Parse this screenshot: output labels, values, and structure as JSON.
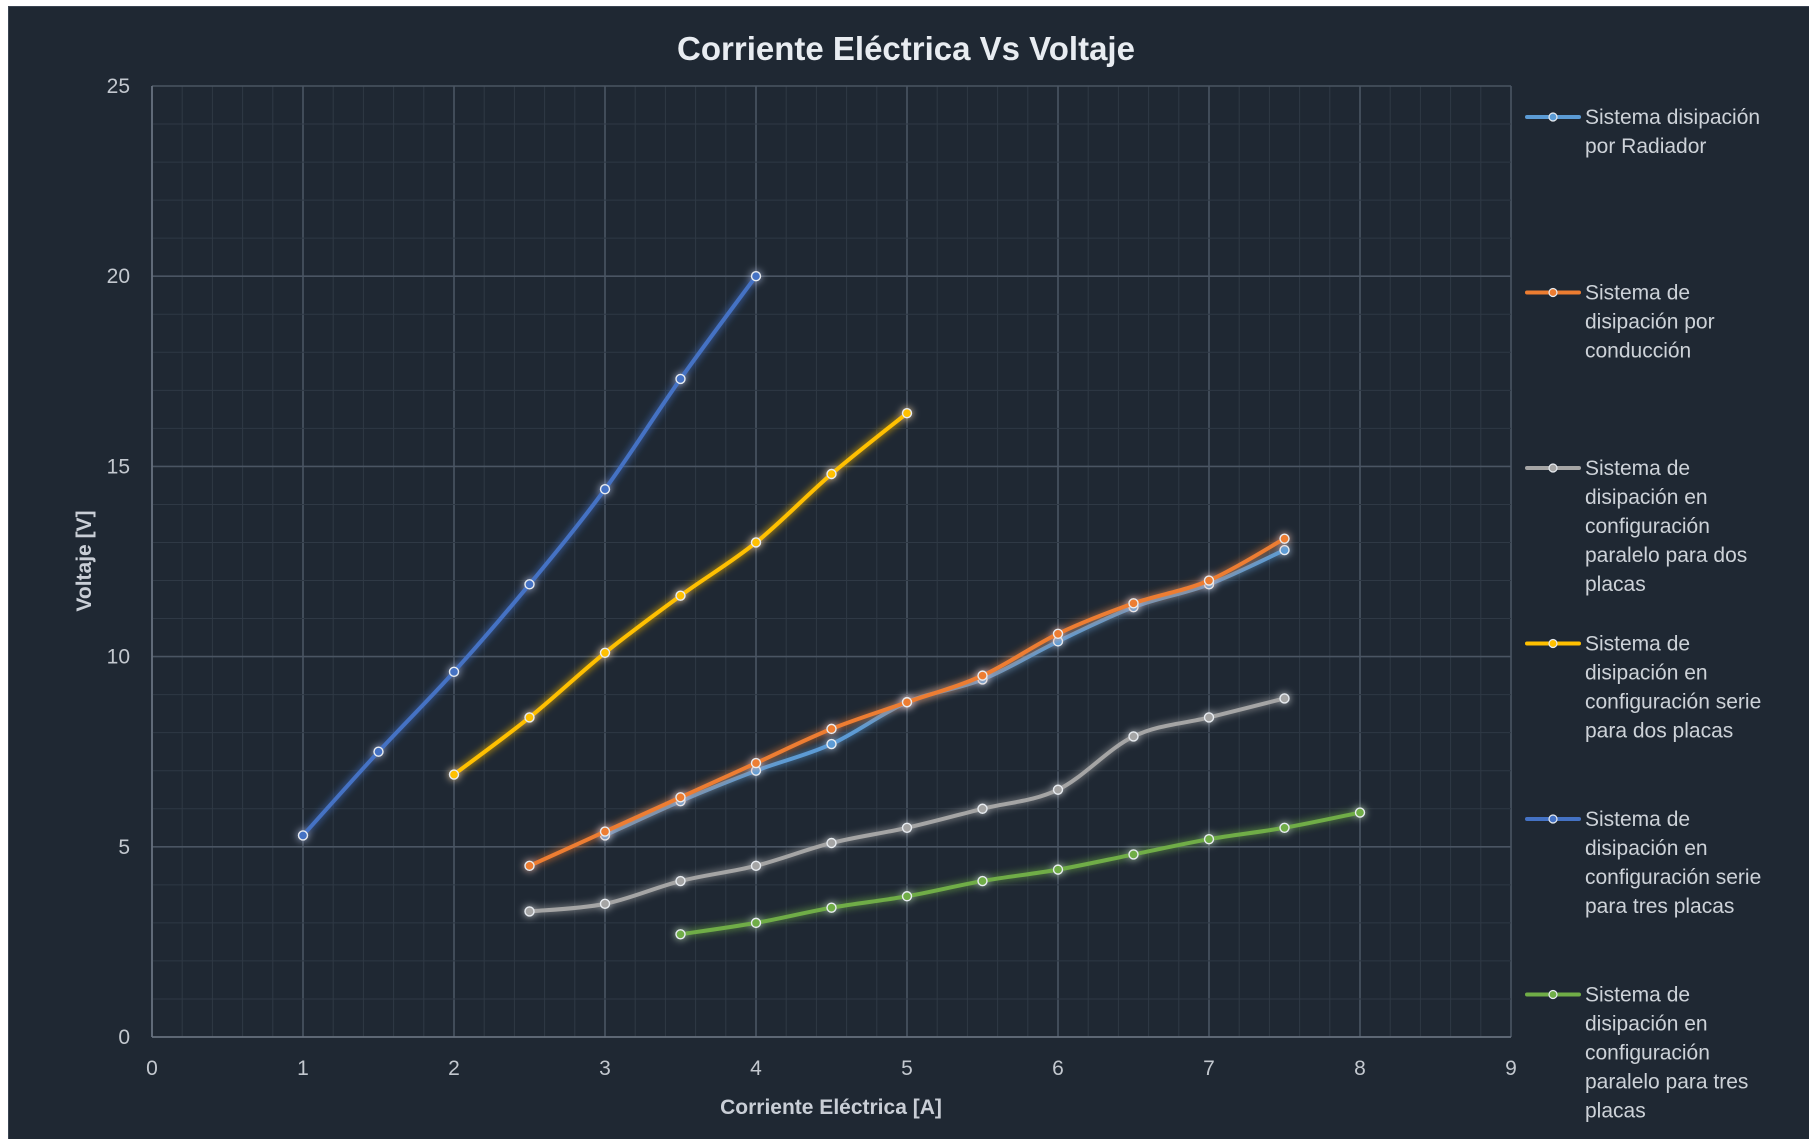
{
  "chart_data": {
    "type": "line",
    "title": "Corriente Eléctrica Vs  Voltaje",
    "xlabel": "Corriente Eléctrica [A]",
    "ylabel": "Voltaje [V]",
    "xlim": [
      0,
      9
    ],
    "ylim": [
      0,
      25
    ],
    "x_ticks": [
      "0",
      "1",
      "2",
      "3",
      "4",
      "5",
      "6",
      "7",
      "8",
      "9"
    ],
    "y_ticks": [
      "0",
      "5",
      "10",
      "15",
      "20",
      "25"
    ],
    "grid": true,
    "legend_position": "right",
    "series": [
      {
        "name": "Sistema disipación por Radiador",
        "color": "#5b9bd5",
        "points": [
          [
            3,
            5.3
          ],
          [
            3.5,
            6.2
          ],
          [
            4,
            7.0
          ],
          [
            4.5,
            7.7
          ],
          [
            5,
            8.8
          ],
          [
            5.5,
            9.4
          ],
          [
            6,
            10.4
          ],
          [
            6.5,
            11.3
          ],
          [
            7,
            11.9
          ],
          [
            7.5,
            12.8
          ]
        ]
      },
      {
        "name": "Sistema de disipación por conducción",
        "color": "#ed7d31",
        "points": [
          [
            2.5,
            4.5
          ],
          [
            3,
            5.4
          ],
          [
            3.5,
            6.3
          ],
          [
            4,
            7.2
          ],
          [
            4.5,
            8.1
          ],
          [
            5,
            8.8
          ],
          [
            5.5,
            9.5
          ],
          [
            6,
            10.6
          ],
          [
            6.5,
            11.4
          ],
          [
            7,
            12.0
          ],
          [
            7.5,
            13.1
          ]
        ]
      },
      {
        "name": "Sistema de disipación en configuración paralelo para dos placas",
        "color": "#a5a5a5",
        "points": [
          [
            2.5,
            3.3
          ],
          [
            3,
            3.5
          ],
          [
            3.5,
            4.1
          ],
          [
            4,
            4.5
          ],
          [
            4.5,
            5.1
          ],
          [
            5,
            5.5
          ],
          [
            5.5,
            6.0
          ],
          [
            6,
            6.5
          ],
          [
            6.5,
            7.9
          ],
          [
            7,
            8.4
          ],
          [
            7.5,
            8.9
          ]
        ]
      },
      {
        "name": "Sistema de disipación en configuración serie para dos placas",
        "color": "#ffc000",
        "points": [
          [
            2,
            6.9
          ],
          [
            2.5,
            8.4
          ],
          [
            3,
            10.1
          ],
          [
            3.5,
            11.6
          ],
          [
            4,
            13.0
          ],
          [
            4.5,
            14.8
          ],
          [
            5,
            16.4
          ]
        ]
      },
      {
        "name": "Sistema de disipación en configuración serie para tres placas",
        "color": "#4472c4",
        "points": [
          [
            1,
            5.3
          ],
          [
            1.5,
            7.5
          ],
          [
            2,
            9.6
          ],
          [
            2.5,
            11.9
          ],
          [
            3,
            14.4
          ],
          [
            3.5,
            17.3
          ],
          [
            4,
            20.0
          ]
        ]
      },
      {
        "name": "Sistema de disipación en configuración paralelo para tres placas",
        "color": "#70ad47",
        "points": [
          [
            3.5,
            2.7
          ],
          [
            4,
            3.0
          ],
          [
            4.5,
            3.4
          ],
          [
            5,
            3.7
          ],
          [
            5.5,
            4.1
          ],
          [
            6,
            4.4
          ],
          [
            6.5,
            4.8
          ],
          [
            7,
            5.2
          ],
          [
            7.5,
            5.5
          ],
          [
            8,
            5.9
          ]
        ]
      }
    ],
    "legend": [
      {
        "series": 0,
        "lines": [
          "Sistema disipación",
          "por Radiador"
        ]
      },
      {
        "series": 1,
        "lines": [
          "Sistema de",
          "disipación por",
          "conducción"
        ]
      },
      {
        "series": 2,
        "lines": [
          "Sistema de",
          "disipación en",
          "configuración",
          "paralelo para dos",
          "placas"
        ]
      },
      {
        "series": 3,
        "lines": [
          "Sistema de",
          "disipación en",
          "configuración serie",
          "para dos placas"
        ]
      },
      {
        "series": 4,
        "lines": [
          "Sistema de",
          "disipación en",
          "configuración serie",
          "para tres placas"
        ]
      },
      {
        "series": 5,
        "lines": [
          "Sistema de",
          "disipación en",
          "configuración",
          "paralelo para tres",
          "placas"
        ]
      }
    ]
  }
}
